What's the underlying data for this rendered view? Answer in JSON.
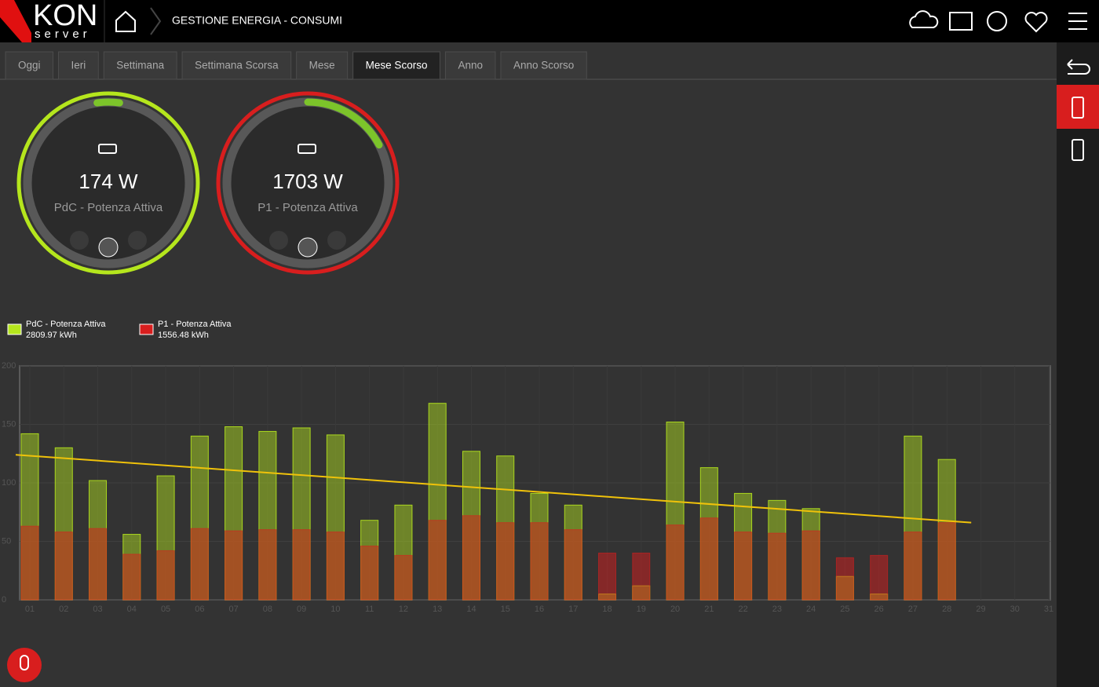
{
  "header": {
    "logo": "KON",
    "logo_sub": "server",
    "title": "GESTIONE ENERGIA - CONSUMI"
  },
  "tabs": {
    "items": [
      "Oggi",
      "Ieri",
      "Settimana",
      "Settimana Scorsa",
      "Mese",
      "Mese Scorso",
      "Anno",
      "Anno Scorso"
    ],
    "active": 5
  },
  "gauges": [
    {
      "value_label": "174 W",
      "name": "PdC - Potenza Attiva",
      "color": "#b5e61d"
    },
    {
      "value_label": "1703 W",
      "name": "P1 - Potenza Attiva",
      "color": "#d81e1e"
    }
  ],
  "chart_data": {
    "type": "bar",
    "categories": [
      "01",
      "02",
      "03",
      "04",
      "05",
      "06",
      "07",
      "08",
      "09",
      "10",
      "11",
      "12",
      "13",
      "14",
      "15",
      "16",
      "17",
      "18",
      "19",
      "20",
      "21",
      "22",
      "23",
      "24",
      "25",
      "26",
      "27",
      "28",
      "29",
      "30",
      "31"
    ],
    "series": [
      {
        "name": "PdC - Potenza Attiva",
        "total_label": "2809.97 kWh",
        "color": "#b5e61d",
        "values": [
          142,
          130,
          102,
          56,
          106,
          140,
          148,
          144,
          147,
          141,
          68,
          81,
          168,
          127,
          123,
          91,
          81,
          5,
          12,
          152,
          113,
          91,
          85,
          78,
          20,
          5,
          140,
          120,
          null,
          null,
          null
        ]
      },
      {
        "name": "P1 - Potenza Attiva",
        "total_label": "1556.48 kWh",
        "color": "#d81e1e",
        "values": [
          63,
          58,
          61,
          39,
          42,
          61,
          59,
          60,
          60,
          58,
          46,
          38,
          68,
          72,
          66,
          66,
          60,
          40,
          40,
          64,
          70,
          58,
          57,
          59,
          36,
          38,
          58,
          66,
          null,
          null,
          null
        ]
      }
    ],
    "trend": {
      "color": "#f0c20a",
      "values": [
        124,
        66
      ]
    },
    "ylim": [
      0,
      200
    ],
    "yticks": [
      0,
      50,
      100,
      150,
      200
    ],
    "grid": true
  }
}
